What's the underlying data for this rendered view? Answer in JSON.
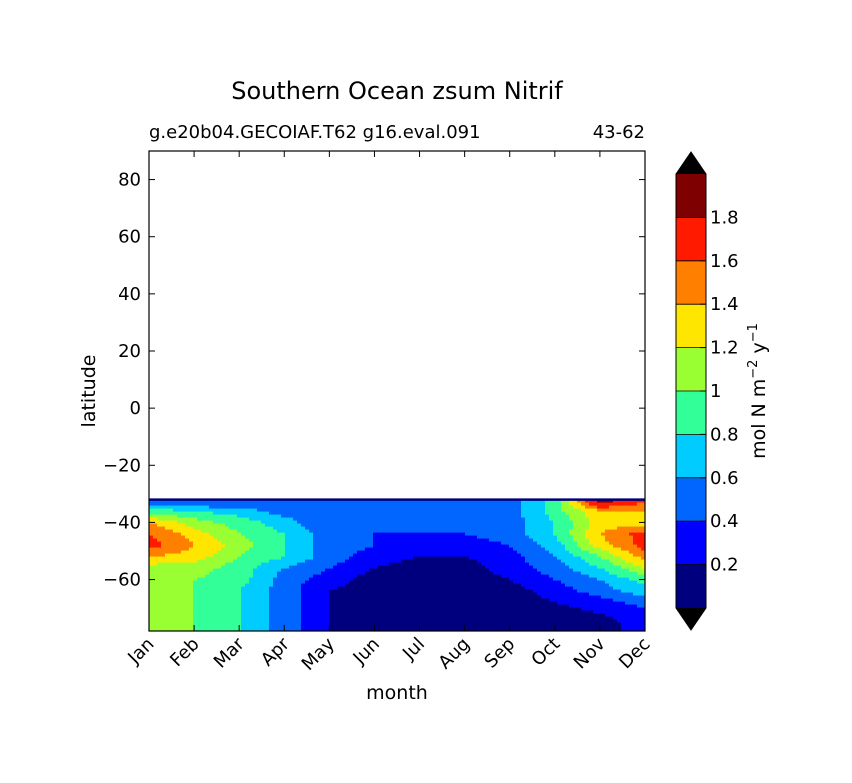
{
  "chart_data": {
    "type": "contourf",
    "title": "Southern Ocean zsum Nitrif",
    "subtitle_left": "g.e20b04.GECOIAF.T62 g16.eval.091",
    "subtitle_right": "43-62",
    "xlabel": "month",
    "ylabel": "latitude",
    "colorbar_label_main": "mol N m",
    "colorbar_label_exp1": "−2",
    "colorbar_label_mid": " y",
    "colorbar_label_exp2": "−1",
    "categories": [
      "Jan",
      "Feb",
      "Mar",
      "Apr",
      "May",
      "Jun",
      "Jul",
      "Aug",
      "Sep",
      "Oct",
      "Nov",
      "Dec"
    ],
    "yticks": [
      {
        "value": 80,
        "label": "80"
      },
      {
        "value": 60,
        "label": "60"
      },
      {
        "value": 40,
        "label": "40"
      },
      {
        "value": 20,
        "label": "20"
      },
      {
        "value": 0,
        "label": "0"
      },
      {
        "value": -20,
        "label": "−20"
      },
      {
        "value": -40,
        "label": "−40"
      },
      {
        "value": -60,
        "label": "−60"
      }
    ],
    "ylim": [
      -78,
      90
    ],
    "xlim": [
      0,
      11
    ],
    "data_lat_top": -32,
    "levels": [
      0,
      0.2,
      0.4,
      0.6,
      0.8,
      1.0,
      1.2,
      1.4,
      1.6,
      1.8,
      2.0
    ],
    "colorbar_tick_labels": [
      {
        "value": 0.2,
        "label": "0.2"
      },
      {
        "value": 0.4,
        "label": "0.4"
      },
      {
        "value": 0.6,
        "label": "0.6"
      },
      {
        "value": 0.8,
        "label": "0.8"
      },
      {
        "value": 1.0,
        "label": "1"
      },
      {
        "value": 1.2,
        "label": "1.2"
      },
      {
        "value": 1.4,
        "label": "1.4"
      },
      {
        "value": 1.6,
        "label": "1.6"
      },
      {
        "value": 1.8,
        "label": "1.8"
      }
    ],
    "colors": [
      "#00007f",
      "#0000ff",
      "#0066ff",
      "#00ccff",
      "#33ff99",
      "#99ff33",
      "#ffe600",
      "#ff8000",
      "#ff1a00",
      "#7f0000"
    ],
    "colorbar_extend": "both",
    "field_lats": [
      -33,
      -36,
      -40,
      -44,
      -48,
      -52,
      -56,
      -60,
      -64,
      -68,
      -72,
      -76
    ],
    "field_values": [
      [
        0.5,
        0.4,
        0.4,
        0.4,
        0.4,
        0.4,
        0.4,
        0.4,
        0.5,
        0.9,
        1.9,
        1.6
      ],
      [
        0.9,
        0.8,
        0.7,
        0.5,
        0.4,
        0.4,
        0.4,
        0.4,
        0.5,
        0.9,
        1.4,
        1.4
      ],
      [
        1.4,
        1.1,
        0.9,
        0.7,
        0.4,
        0.4,
        0.4,
        0.4,
        0.5,
        0.8,
        1.3,
        1.3
      ],
      [
        1.6,
        1.3,
        1.0,
        0.8,
        0.5,
        0.4,
        0.4,
        0.4,
        0.5,
        0.8,
        1.4,
        1.7
      ],
      [
        1.7,
        1.4,
        1.1,
        0.8,
        0.5,
        0.4,
        0.3,
        0.3,
        0.4,
        0.7,
        1.3,
        1.7
      ],
      [
        1.4,
        1.3,
        1.0,
        0.8,
        0.5,
        0.3,
        0.2,
        0.2,
        0.3,
        0.6,
        1.0,
        1.5
      ],
      [
        1.1,
        1.1,
        0.9,
        0.6,
        0.4,
        0.2,
        0.1,
        0.1,
        0.3,
        0.5,
        0.8,
        1.2
      ],
      [
        1.0,
        1.0,
        0.9,
        0.5,
        0.3,
        0.1,
        0.1,
        0.1,
        0.2,
        0.4,
        0.6,
        0.9
      ],
      [
        1.0,
        1.0,
        0.8,
        0.5,
        0.2,
        0.1,
        0.1,
        0.1,
        0.1,
        0.3,
        0.5,
        0.7
      ],
      [
        1.0,
        1.0,
        0.8,
        0.5,
        0.2,
        0.1,
        0.1,
        0.1,
        0.1,
        0.2,
        0.3,
        0.5
      ],
      [
        1.0,
        1.0,
        0.8,
        0.5,
        0.2,
        0.1,
        0.1,
        0.1,
        0.1,
        0.1,
        0.2,
        0.3
      ],
      [
        1.2,
        1.0,
        0.8,
        0.5,
        0.2,
        0.1,
        0.1,
        0.1,
        0.1,
        0.1,
        0.1,
        0.3
      ]
    ]
  }
}
